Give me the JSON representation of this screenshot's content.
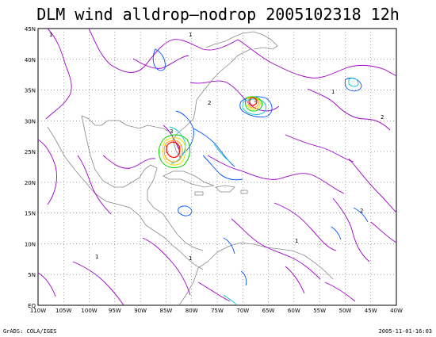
{
  "title": "DLM wind alldrop–nodrop 2005102318 12h",
  "footer": {
    "left": "GrADS: COLA/IGES",
    "right": "2005-11-01-16:03"
  },
  "map": {
    "lon_range": [
      -110,
      -40
    ],
    "lat_range": [
      0,
      45
    ],
    "x_ticks": [
      "110W",
      "105W",
      "100W",
      "95W",
      "90W",
      "85W",
      "80W",
      "75W",
      "70W",
      "65W",
      "60W",
      "55W",
      "50W",
      "45W",
      "40W"
    ],
    "y_ticks": [
      "EQ",
      "5N",
      "10N",
      "15N",
      "20N",
      "25N",
      "30N",
      "35N",
      "40N",
      "45N"
    ],
    "grid": "dotted",
    "contour_colors": {
      "level_1": "#a000c8",
      "level_2": "#0050ff",
      "level_3": "#00c8c8",
      "level_4": "#00d200",
      "level_5": "#e6e600",
      "level_6": "#ff9600",
      "level_7": "#ff0000"
    },
    "contour_labels": [
      "1",
      "2",
      "3"
    ]
  }
}
